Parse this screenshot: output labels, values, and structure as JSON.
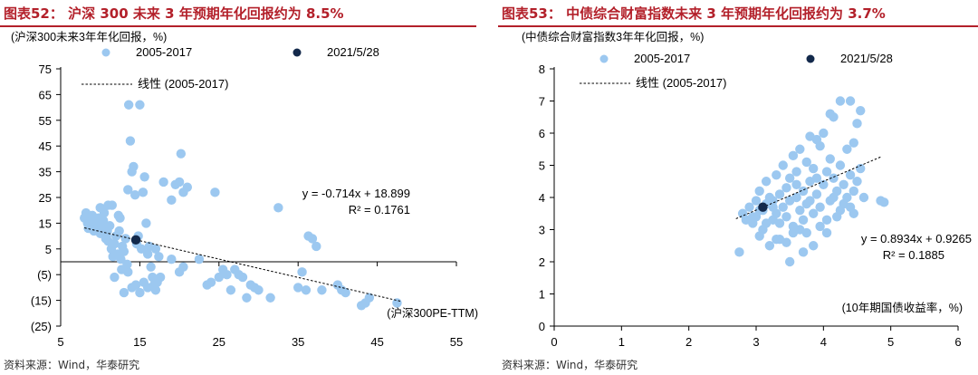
{
  "charts": [
    {
      "title": "图表52：  沪深 300 未来 3 年预期年化回报约为 8.5%",
      "unit_label": "(沪深300未来3年年化回报，%)",
      "x_axis_label": "(沪深300PE-TTM)",
      "legend": {
        "series_a": "2005-2017",
        "series_b": "2021/5/28",
        "trend": "线性 (2005-2017)"
      },
      "equation": "y = -0.714x + 18.899",
      "r_squared": "R² = 0.1761",
      "source": "资料来源：Wind，华泰研究"
    },
    {
      "title": "图表53：  中债综合财富指数未来 3 年预期年化回报约为 3.7%",
      "unit_label": "(中债综合财富指数3年年化回报，%)",
      "x_axis_label": "(10年期国债收益率，%)",
      "legend": {
        "series_a": "2005-2017",
        "series_b": "2021/5/28",
        "trend": "线性 (2005-2017)"
      },
      "equation": "y = 0.8934x + 0.9265",
      "r_squared": "R² = 0.1885",
      "source": "资料来源：Wind，华泰研究"
    }
  ],
  "colors": {
    "title": "#b3202a",
    "points": "#9cc8f0",
    "current": "#13294b",
    "axis": "#000000"
  },
  "chart_data": [
    {
      "type": "scatter",
      "title": "图表52：  沪深 300 未来 3 年预期年化回报约为 8.5%",
      "xlabel": "(沪深300PE-TTM)",
      "ylabel": "(沪深300未来3年年化回报，%)",
      "xlim": [
        5,
        55
      ],
      "ylim": [
        -25,
        75
      ],
      "x_ticks": [
        5,
        15,
        25,
        35,
        45,
        55
      ],
      "y_ticks": [
        75,
        65,
        55,
        45,
        35,
        25,
        15,
        5,
        -5,
        -15,
        -25
      ],
      "y_tick_labels": [
        "75",
        "65",
        "55",
        "45",
        "35",
        "25",
        "15",
        "5",
        "(5)",
        "(15)",
        "(25)"
      ],
      "legend_position": "top",
      "grid": false,
      "trendline": {
        "name": "线性 (2005-2017)",
        "slope": -0.714,
        "intercept": 18.899,
        "x_range": [
          8,
          48
        ]
      },
      "series": [
        {
          "name": "2005-2017",
          "points": [
            [
              8,
              17
            ],
            [
              8.2,
              19
            ],
            [
              8.4,
              15
            ],
            [
              8.6,
              14
            ],
            [
              8.8,
              16
            ],
            [
              9,
              18
            ],
            [
              9.2,
              12
            ],
            [
              9.4,
              15
            ],
            [
              9.6,
              13
            ],
            [
              9.8,
              17
            ],
            [
              10,
              11
            ],
            [
              10.2,
              14
            ],
            [
              10.4,
              16
            ],
            [
              10.5,
              19
            ],
            [
              10.7,
              9
            ],
            [
              10.9,
              12
            ],
            [
              11,
              8
            ],
            [
              11.2,
              14
            ],
            [
              11.4,
              5
            ],
            [
              11.5,
              22
            ],
            [
              11.6,
              2
            ],
            [
              11.8,
              7
            ],
            [
              12,
              10
            ],
            [
              12.2,
              3
            ],
            [
              12.4,
              12
            ],
            [
              12.5,
              17
            ],
            [
              12.6,
              1
            ],
            [
              12.8,
              6
            ],
            [
              13,
              4
            ],
            [
              13.2,
              9
            ],
            [
              13.4,
              -1
            ],
            [
              13.5,
              28
            ],
            [
              13.6,
              61
            ],
            [
              13.8,
              47
            ],
            [
              14,
              35
            ],
            [
              14.2,
              37
            ],
            [
              14.4,
              26
            ],
            [
              14.6,
              7
            ],
            [
              14.8,
              10
            ],
            [
              15,
              61
            ],
            [
              15.2,
              5
            ],
            [
              15.4,
              27
            ],
            [
              15.6,
              33
            ],
            [
              15.8,
              15
            ],
            [
              16,
              3
            ],
            [
              16.2,
              6
            ],
            [
              16.4,
              -2
            ],
            [
              16.6,
              -6
            ],
            [
              16.8,
              -9
            ],
            [
              17,
              -11
            ],
            [
              17.2,
              -8
            ],
            [
              17.4,
              2
            ],
            [
              17.6,
              -6
            ],
            [
              13,
              -12
            ],
            [
              14,
              -10
            ],
            [
              15,
              -12
            ],
            [
              16,
              -10
            ],
            [
              13.5,
              -4
            ],
            [
              12.7,
              -3
            ],
            [
              11.8,
              -6
            ],
            [
              14.5,
              -9
            ],
            [
              15.5,
              -8
            ],
            [
              17,
              5
            ],
            [
              18,
              31
            ],
            [
              19,
              1
            ],
            [
              19.5,
              30
            ],
            [
              20,
              31
            ],
            [
              20.2,
              42
            ],
            [
              20.5,
              27
            ],
            [
              21,
              29
            ],
            [
              19,
              24
            ],
            [
              20,
              -4
            ],
            [
              20.5,
              -2
            ],
            [
              22.5,
              1
            ],
            [
              23.5,
              -9
            ],
            [
              24,
              -8
            ],
            [
              24.5,
              27
            ],
            [
              25,
              -6
            ],
            [
              25.5,
              -3
            ],
            [
              26,
              -5
            ],
            [
              26.5,
              -11
            ],
            [
              27,
              -3
            ],
            [
              27.5,
              -5
            ],
            [
              28,
              -6
            ],
            [
              28.5,
              -14
            ],
            [
              29,
              -9
            ],
            [
              29.5,
              -10
            ],
            [
              30,
              -11
            ],
            [
              31.5,
              -14
            ],
            [
              32.5,
              21
            ],
            [
              35,
              -10
            ],
            [
              35.5,
              -4
            ],
            [
              36,
              -11
            ],
            [
              36.3,
              10
            ],
            [
              36.8,
              9
            ],
            [
              37.3,
              6
            ],
            [
              38,
              -11
            ],
            [
              40,
              -9
            ],
            [
              40.5,
              -11
            ],
            [
              41,
              -12
            ],
            [
              43,
              -17
            ],
            [
              43.5,
              -16
            ],
            [
              44,
              -14
            ],
            [
              47.5,
              -16
            ],
            [
              10,
              21
            ],
            [
              11,
              22
            ],
            [
              12.3,
              18
            ],
            [
              9,
              16
            ],
            [
              8.5,
              13
            ],
            [
              10.8,
              10
            ]
          ]
        },
        {
          "name": "2021/5/28",
          "points": [
            [
              14.5,
              8.5
            ]
          ]
        }
      ]
    },
    {
      "type": "scatter",
      "title": "图表53：  中债综合财富指数未来 3 年预期年化回报约为 3.7%",
      "xlabel": "(10年期国债收益率，%)",
      "ylabel": "(中债综合财富指数3年年化回报，%)",
      "xlim": [
        0,
        6
      ],
      "ylim": [
        0,
        8
      ],
      "x_ticks": [
        0,
        1,
        2,
        3,
        4,
        5,
        6
      ],
      "y_ticks": [
        0,
        1,
        2,
        3,
        4,
        5,
        6,
        7,
        8
      ],
      "legend_position": "top",
      "grid": false,
      "trendline": {
        "name": "线性 (2005-2017)",
        "slope": 0.8934,
        "intercept": 0.9265,
        "x_range": [
          2.7,
          4.85
        ]
      },
      "series": [
        {
          "name": "2005-2017",
          "points": [
            [
              2.75,
              2.3
            ],
            [
              2.8,
              3.5
            ],
            [
              2.85,
              3.3
            ],
            [
              2.9,
              3.7
            ],
            [
              2.95,
              3.2
            ],
            [
              3.0,
              3.9
            ],
            [
              3.0,
              3.4
            ],
            [
              3.05,
              2.8
            ],
            [
              3.05,
              4.2
            ],
            [
              3.1,
              3.0
            ],
            [
              3.1,
              3.6
            ],
            [
              3.15,
              4.5
            ],
            [
              3.15,
              3.8
            ],
            [
              3.2,
              2.5
            ],
            [
              3.2,
              4.0
            ],
            [
              3.25,
              3.3
            ],
            [
              3.25,
              3.9
            ],
            [
              3.3,
              2.7
            ],
            [
              3.3,
              3.5
            ],
            [
              3.3,
              4.7
            ],
            [
              3.35,
              4.1
            ],
            [
              3.35,
              3.2
            ],
            [
              3.4,
              3.7
            ],
            [
              3.4,
              5.0
            ],
            [
              3.45,
              4.3
            ],
            [
              3.45,
              3.4
            ],
            [
              3.5,
              2.0
            ],
            [
              3.5,
              3.9
            ],
            [
              3.5,
              4.6
            ],
            [
              3.55,
              5.3
            ],
            [
              3.55,
              3.1
            ],
            [
              3.6,
              4.0
            ],
            [
              3.6,
              4.8
            ],
            [
              3.65,
              3.6
            ],
            [
              3.65,
              5.5
            ],
            [
              3.7,
              4.2
            ],
            [
              3.7,
              3.3
            ],
            [
              3.7,
              2.3
            ],
            [
              3.75,
              5.1
            ],
            [
              3.75,
              3.8
            ],
            [
              3.8,
              4.5
            ],
            [
              3.8,
              5.9
            ],
            [
              3.85,
              4.9
            ],
            [
              3.85,
              3.5
            ],
            [
              3.9,
              4.1
            ],
            [
              3.9,
              5.8
            ],
            [
              3.95,
              5.6
            ],
            [
              3.95,
              3.7
            ],
            [
              4.0,
              4.4
            ],
            [
              4.0,
              6.0
            ],
            [
              4.05,
              3.3
            ],
            [
              4.05,
              4.8
            ],
            [
              4.1,
              3.9
            ],
            [
              4.1,
              5.2
            ],
            [
              4.1,
              6.6
            ],
            [
              4.15,
              6.5
            ],
            [
              4.15,
              4.6
            ],
            [
              4.2,
              3.4
            ],
            [
              4.2,
              4.2
            ],
            [
              4.25,
              5.0
            ],
            [
              4.25,
              7.0
            ],
            [
              4.3,
              3.8
            ],
            [
              4.3,
              4.4
            ],
            [
              4.35,
              5.5
            ],
            [
              4.35,
              4.0
            ],
            [
              4.4,
              7.0
            ],
            [
              4.4,
              4.7
            ],
            [
              4.45,
              5.7
            ],
            [
              4.45,
              4.2
            ],
            [
              4.5,
              6.3
            ],
            [
              4.5,
              4.5
            ],
            [
              4.55,
              6.7
            ],
            [
              4.55,
              4.9
            ],
            [
              4.6,
              4.0
            ],
            [
              4.05,
              2.9
            ],
            [
              3.85,
              2.5
            ],
            [
              3.75,
              2.9
            ],
            [
              4.4,
              3.7
            ],
            [
              4.45,
              3.5
            ],
            [
              4.85,
              3.9
            ],
            [
              4.9,
              3.85
            ],
            [
              3.55,
              2.9
            ],
            [
              3.45,
              2.6
            ],
            [
              3.35,
              2.7
            ],
            [
              3.65,
              3.0
            ],
            [
              3.95,
              3.1
            ],
            [
              3.25,
              3.7
            ],
            [
              3.15,
              3.2
            ],
            [
              3.05,
              3.6
            ],
            [
              2.95,
              3.4
            ],
            [
              4.25,
              3.6
            ],
            [
              4.15,
              4.0
            ],
            [
              3.9,
              4.6
            ],
            [
              3.8,
              3.9
            ],
            [
              3.6,
              4.4
            ]
          ]
        },
        {
          "name": "2021/5/28",
          "points": [
            [
              3.1,
              3.7
            ]
          ]
        }
      ]
    }
  ]
}
